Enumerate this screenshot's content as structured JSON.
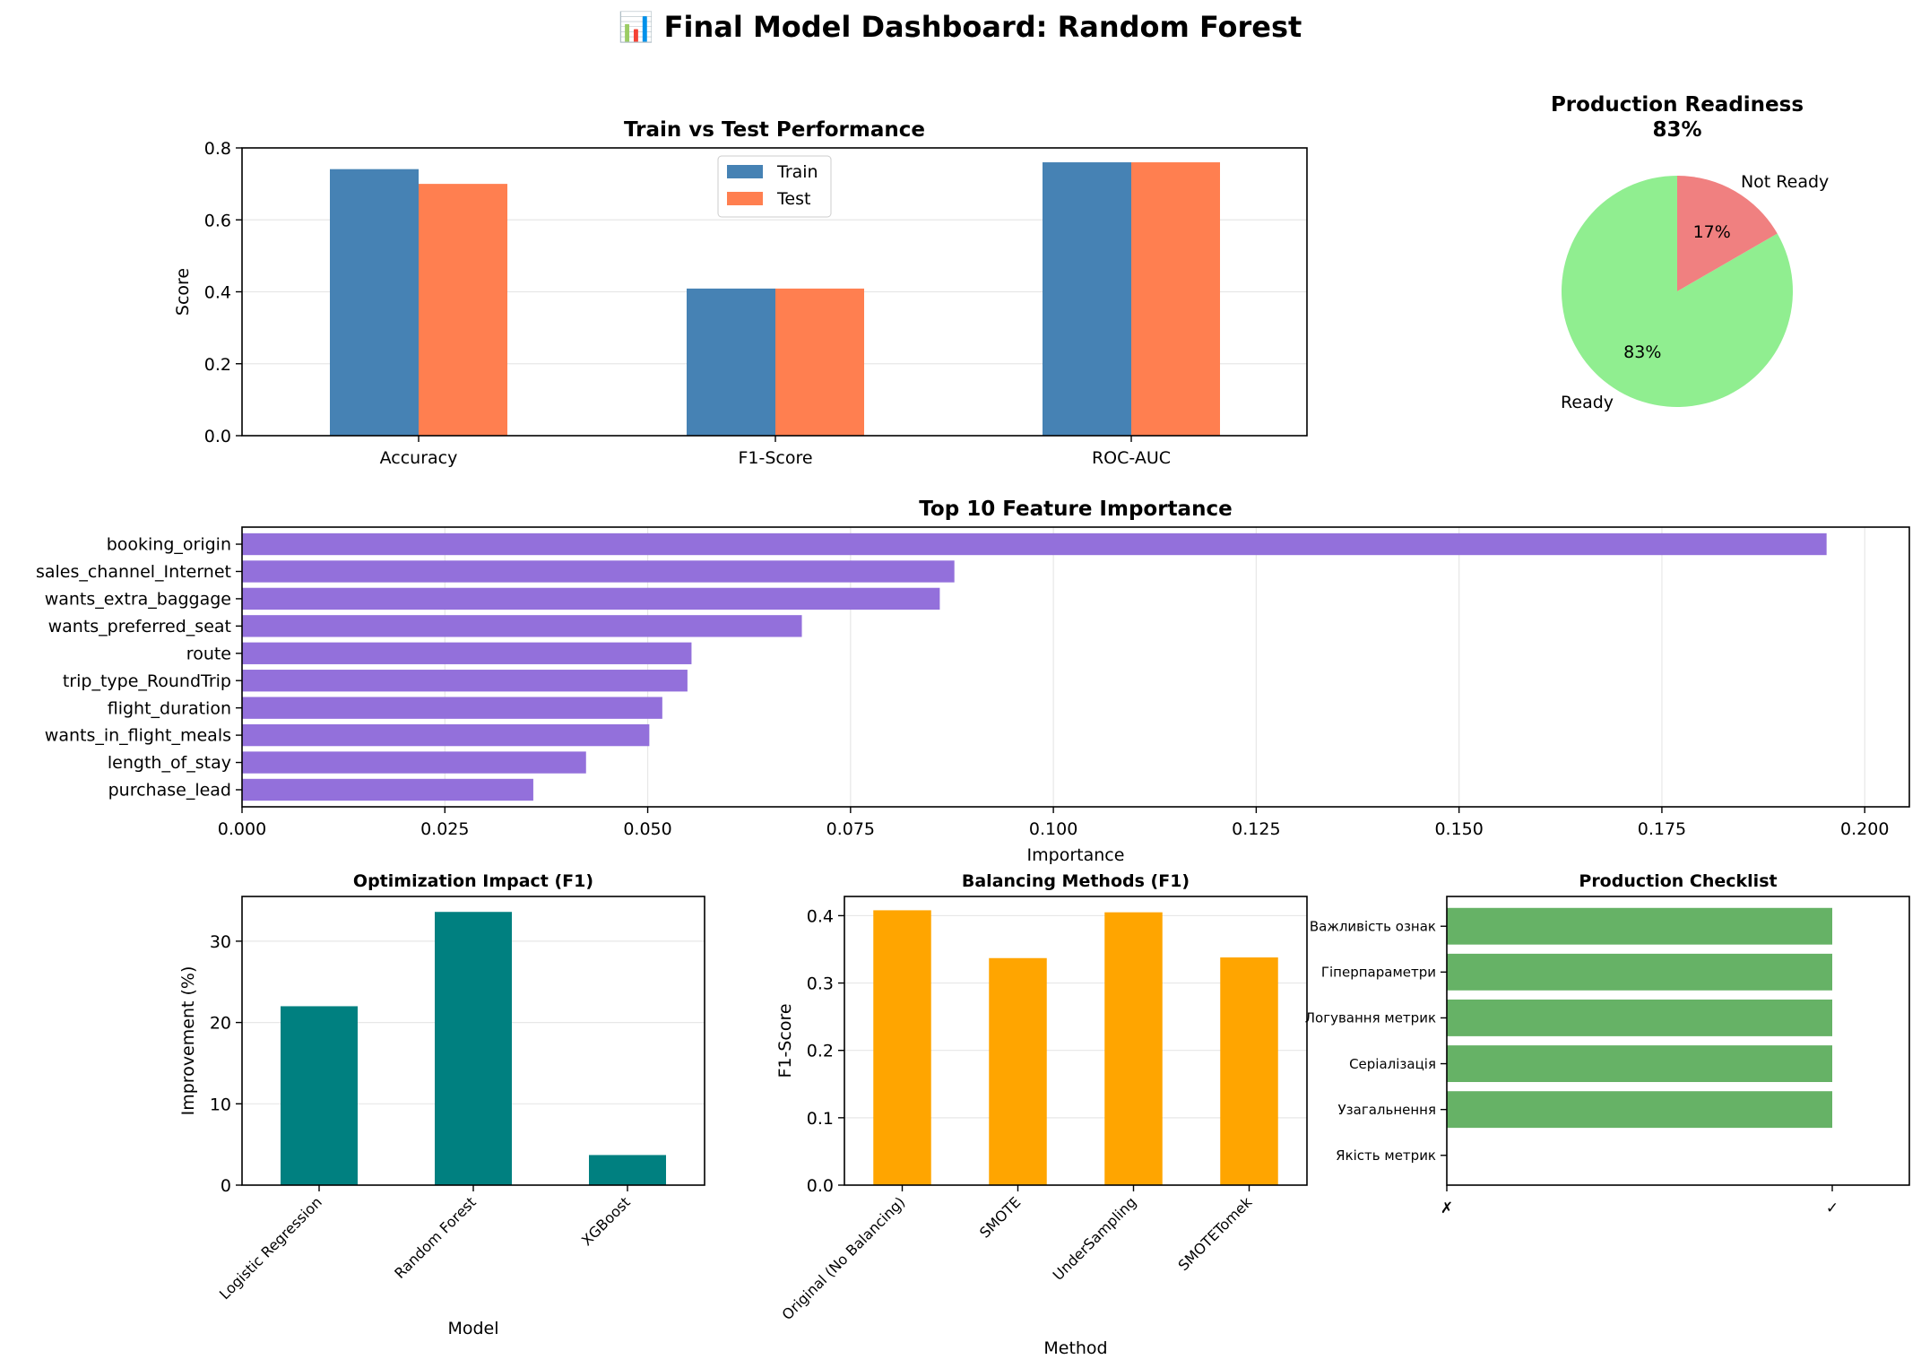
{
  "suptitle": "📊 Final Model Dashboard: Random Forest",
  "chart_data": [
    {
      "type": "bar",
      "title": "Train vs Test Performance",
      "xlabel": "",
      "ylabel": "Score",
      "categories": [
        "Accuracy",
        "F1-Score",
        "ROC-AUC"
      ],
      "series": [
        {
          "name": "Train",
          "values": [
            0.741,
            0.409,
            0.76
          ],
          "color": "#4682b4"
        },
        {
          "name": "Test",
          "values": [
            0.7,
            0.409,
            0.76
          ],
          "color": "#ff7f50"
        }
      ],
      "ylim": [
        0,
        0.8
      ],
      "yticks": [
        "0.0",
        "0.2",
        "0.4",
        "0.6",
        "0.8"
      ],
      "legend": "upper center",
      "grid": "y"
    },
    {
      "type": "pie",
      "title": "Production Readiness\n83%",
      "labels": [
        "Ready",
        "Not Ready"
      ],
      "values": [
        83.33,
        16.67
      ],
      "pct_labels": [
        "83%",
        "17%"
      ],
      "colors": [
        "#90ee90",
        "#f08080"
      ]
    },
    {
      "type": "bar",
      "orientation": "horizontal",
      "title": "Top 10 Feature Importance",
      "xlabel": "Importance",
      "ylabel": "",
      "categories": [
        "booking_origin",
        "sales_channel_Internet",
        "wants_extra_baggage",
        "wants_preferred_seat",
        "route",
        "trip_type_RoundTrip",
        "flight_duration",
        "wants_in_flight_meals",
        "length_of_stay",
        "purchase_lead"
      ],
      "values": [
        0.1953,
        0.0878,
        0.086,
        0.069,
        0.0554,
        0.0549,
        0.0518,
        0.0502,
        0.0424,
        0.0359
      ],
      "color": "#9370db",
      "xlim": [
        0,
        0.2055
      ],
      "xticks": [
        "0.000",
        "0.025",
        "0.050",
        "0.075",
        "0.100",
        "0.125",
        "0.150",
        "0.175",
        "0.200"
      ],
      "grid": "x"
    },
    {
      "type": "bar",
      "title": "Optimization Impact (F1)",
      "xlabel": "Model",
      "ylabel": "Improvement (%)",
      "categories": [
        "Logistic Regression",
        "Random Forest",
        "XGBoost"
      ],
      "values": [
        22.0,
        33.6,
        3.7
      ],
      "color": "#008080",
      "ylim": [
        0,
        35.5
      ],
      "yticks": [
        "0",
        "10",
        "20",
        "30"
      ],
      "grid": "y"
    },
    {
      "type": "bar",
      "title": "Balancing Methods (F1)",
      "xlabel": "Method",
      "ylabel": "F1-Score",
      "categories": [
        "Original (No Balancing)",
        "SMOTE",
        "UnderSampling",
        "SMOTETomek"
      ],
      "values": [
        0.408,
        0.337,
        0.405,
        0.338
      ],
      "color": "#ffa500",
      "ylim": [
        0,
        0.4285
      ],
      "yticks": [
        "0.0",
        "0.1",
        "0.2",
        "0.3",
        "0.4"
      ],
      "grid": "y"
    },
    {
      "type": "bar",
      "orientation": "horizontal",
      "title": "Production Checklist",
      "xlabel": "",
      "ylabel": "",
      "categories": [
        "Важливість ознак",
        "Гіперпараметри",
        "Логування метрик",
        "Серіалізація",
        "Узагальнення",
        "Якість метрик"
      ],
      "values": [
        1,
        1,
        1,
        1,
        1,
        0
      ],
      "color": "#66b266",
      "xlim": [
        0,
        1.2
      ],
      "xticks": [
        "✗",
        "✓"
      ],
      "grid": "x"
    }
  ]
}
